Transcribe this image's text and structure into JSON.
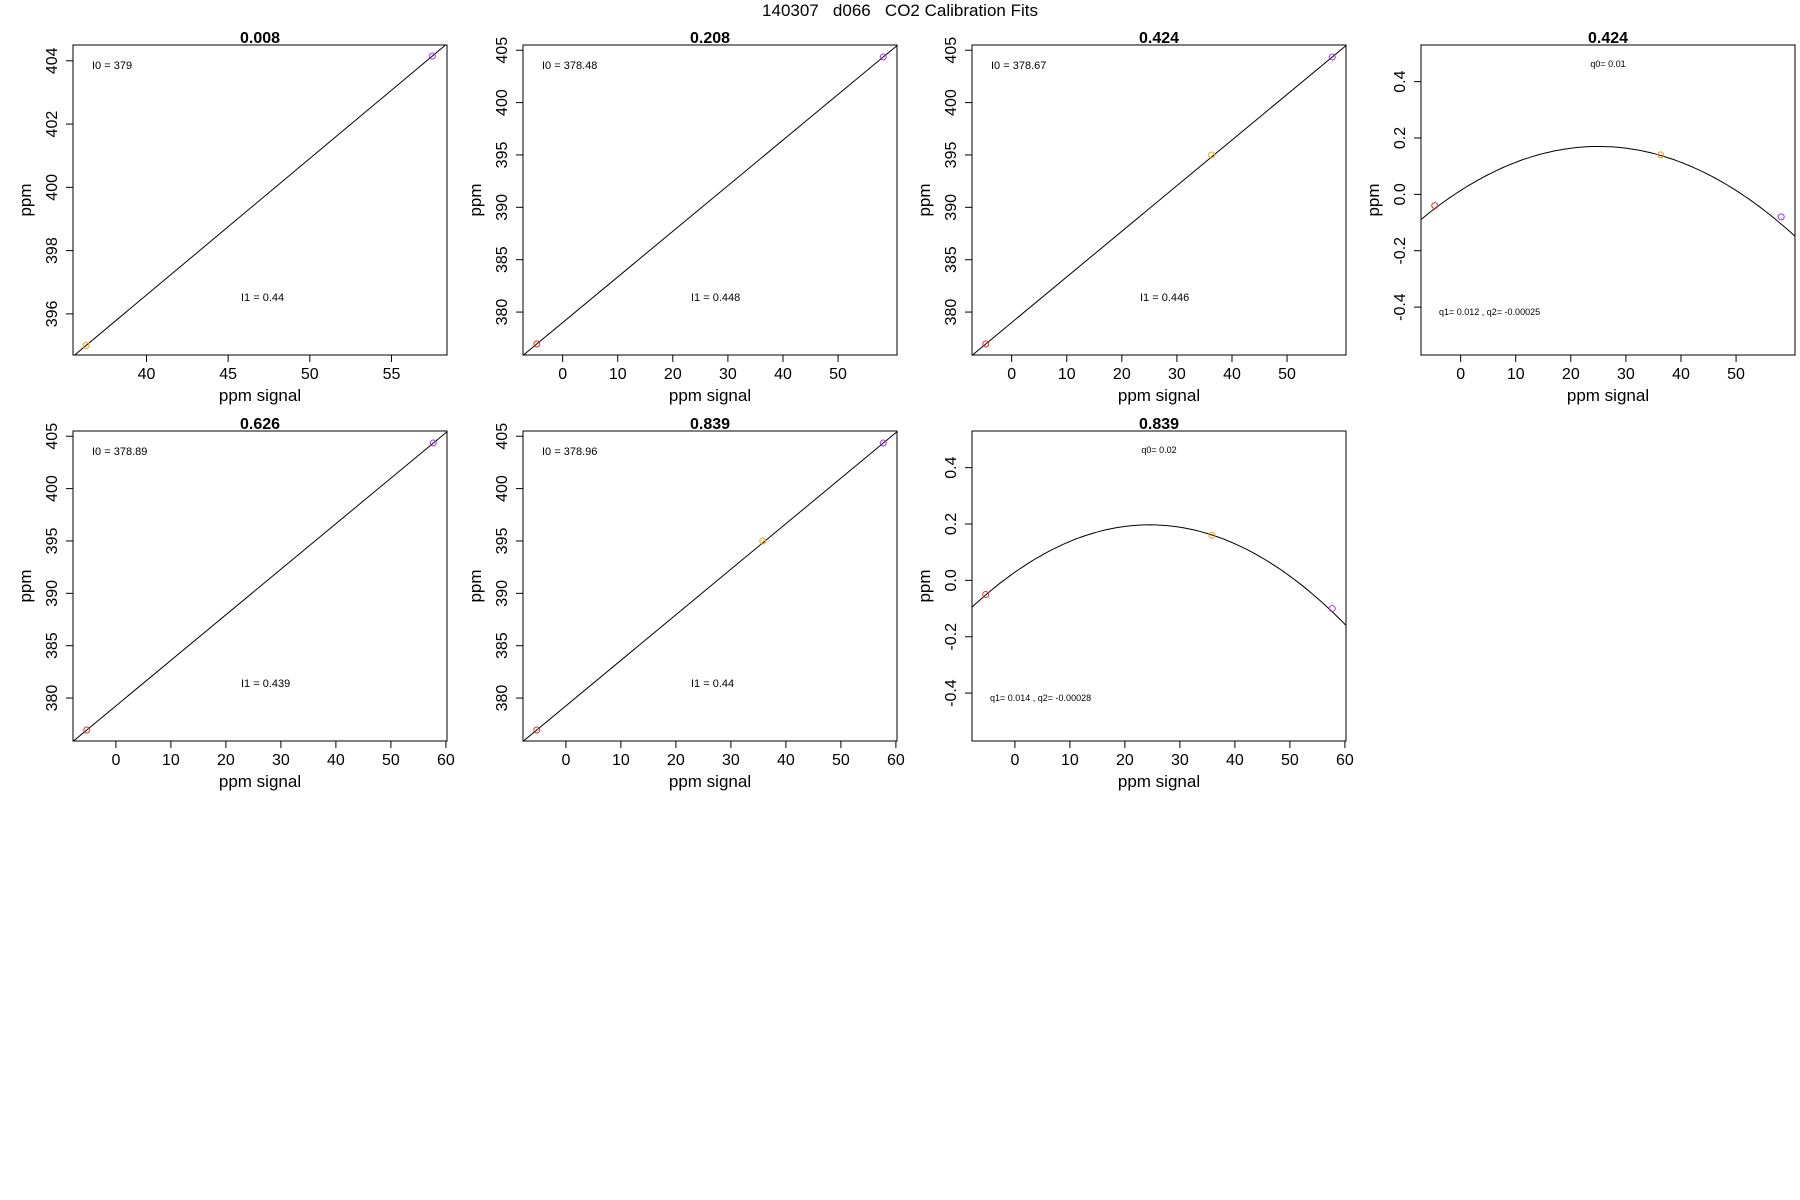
{
  "figure_title": "140307   d066   CO2 Calibration Fits",
  "chart_data": [
    {
      "type": "scatter",
      "title": "0.008",
      "xlabel": "ppm signal",
      "ylabel": "ppm",
      "xlim": [
        35.5,
        58.4
      ],
      "ylim": [
        394.7,
        404.5
      ],
      "xticks": [
        40,
        45,
        50,
        55
      ],
      "yticks": [
        396,
        398,
        400,
        402,
        404
      ],
      "points": [
        {
          "x": 36.3,
          "y": 395.0,
          "color": "#f5a000"
        },
        {
          "x": 57.5,
          "y": 404.15,
          "color": "#9b30ff"
        }
      ],
      "fit": {
        "kind": "linear",
        "x0": 36.3,
        "y0": 395.0,
        "x1": 57.5,
        "y1": 404.15
      },
      "annotations": [
        "I0 =  379",
        "I1 =  0.44"
      ]
    },
    {
      "type": "scatter",
      "title": "0.208",
      "xlabel": "ppm signal",
      "ylabel": "ppm",
      "xlim": [
        -7.2,
        60.7
      ],
      "ylim": [
        375.9,
        405.5
      ],
      "xticks": [
        0,
        10,
        20,
        30,
        40,
        50
      ],
      "yticks": [
        380,
        385,
        390,
        395,
        400,
        405
      ],
      "points": [
        {
          "x": -4.7,
          "y": 376.95,
          "color": "#e03030"
        },
        {
          "x": 58.2,
          "y": 404.35,
          "color": "#9b30ff"
        }
      ],
      "fit": {
        "kind": "linear",
        "x0": -4.7,
        "y0": 376.95,
        "x1": 58.2,
        "y1": 404.35
      },
      "annotations": [
        "I0 =  378.48",
        "I1 =  0.448"
      ]
    },
    {
      "type": "scatter",
      "title": "0.424",
      "xlabel": "ppm signal",
      "ylabel": "ppm",
      "xlim": [
        -7.2,
        60.7
      ],
      "ylim": [
        375.9,
        405.5
      ],
      "xticks": [
        0,
        10,
        20,
        30,
        40,
        50
      ],
      "yticks": [
        380,
        385,
        390,
        395,
        400,
        405
      ],
      "points": [
        {
          "x": -4.7,
          "y": 376.95,
          "color": "#e03030"
        },
        {
          "x": 36.3,
          "y": 395.0,
          "color": "#f5a000"
        },
        {
          "x": 58.2,
          "y": 404.35,
          "color": "#9b30ff"
        }
      ],
      "fit": {
        "kind": "linear",
        "x0": -4.7,
        "y0": 376.95,
        "x1": 58.2,
        "y1": 404.35
      },
      "annotations": [
        "I0 =  378.67",
        "I1 =  0.446"
      ]
    },
    {
      "type": "scatter",
      "title": "0.424",
      "xlabel": "ppm signal",
      "ylabel": "ppm",
      "xlim": [
        -7.2,
        60.7
      ],
      "ylim": [
        -0.57,
        0.53
      ],
      "xticks": [
        0,
        10,
        20,
        30,
        40,
        50
      ],
      "yticks": [
        -0.4,
        -0.2,
        0.0,
        0.2,
        0.4
      ],
      "ytick_labels": [
        "-0.4",
        "-0.2",
        "0.0",
        "0.2",
        "0.4"
      ],
      "points": [
        {
          "x": -4.7,
          "y": -0.04,
          "color": "#e03030"
        },
        {
          "x": 36.3,
          "y": 0.14,
          "color": "#f5a000"
        },
        {
          "x": 58.2,
          "y": -0.08,
          "color": "#9b30ff"
        }
      ],
      "fit": {
        "kind": "quadratic",
        "a": -0.00025,
        "h": 25.0,
        "k": 0.17
      },
      "annotations": [
        "q0= 0.01",
        "q1= 0.012 ,  q2= -0.00025"
      ]
    },
    {
      "type": "scatter",
      "title": "0.626",
      "xlabel": "ppm signal",
      "ylabel": "ppm",
      "xlim": [
        -7.8,
        60.2
      ],
      "ylim": [
        375.9,
        405.5
      ],
      "xticks": [
        0,
        10,
        20,
        30,
        40,
        50,
        60
      ],
      "yticks": [
        380,
        385,
        390,
        395,
        400,
        405
      ],
      "points": [
        {
          "x": -5.3,
          "y": 376.95,
          "color": "#e03030"
        },
        {
          "x": 57.7,
          "y": 404.35,
          "color": "#9b30ff"
        }
      ],
      "fit": {
        "kind": "linear",
        "x0": -5.3,
        "y0": 376.95,
        "x1": 57.7,
        "y1": 404.35
      },
      "annotations": [
        "I0 =  378.89",
        "I1 =  0.439"
      ]
    },
    {
      "type": "scatter",
      "title": "0.839",
      "xlabel": "ppm signal",
      "ylabel": "ppm",
      "xlim": [
        -7.8,
        60.2
      ],
      "ylim": [
        375.9,
        405.5
      ],
      "xticks": [
        0,
        10,
        20,
        30,
        40,
        50,
        60
      ],
      "yticks": [
        380,
        385,
        390,
        395,
        400,
        405
      ],
      "points": [
        {
          "x": -5.3,
          "y": 376.95,
          "color": "#e03030"
        },
        {
          "x": 35.8,
          "y": 395.0,
          "color": "#f5a000"
        },
        {
          "x": 57.7,
          "y": 404.35,
          "color": "#9b30ff"
        }
      ],
      "fit": {
        "kind": "linear",
        "x0": -5.3,
        "y0": 376.95,
        "x1": 57.7,
        "y1": 404.35
      },
      "annotations": [
        "I0 =  378.96",
        "I1 =  0.44"
      ]
    },
    {
      "type": "scatter",
      "title": "0.839",
      "xlabel": "ppm signal",
      "ylabel": "ppm",
      "xlim": [
        -7.8,
        60.2
      ],
      "ylim": [
        -0.57,
        0.53
      ],
      "xticks": [
        0,
        10,
        20,
        30,
        40,
        50,
        60
      ],
      "yticks": [
        -0.4,
        -0.2,
        0.0,
        0.2,
        0.4
      ],
      "ytick_labels": [
        "-0.4",
        "-0.2",
        "0.0",
        "0.2",
        "0.4"
      ],
      "points": [
        {
          "x": -5.3,
          "y": -0.05,
          "color": "#e03030"
        },
        {
          "x": 35.8,
          "y": 0.16,
          "color": "#f5a000"
        },
        {
          "x": 57.7,
          "y": -0.1,
          "color": "#9b30ff"
        }
      ],
      "fit": {
        "kind": "quadratic",
        "a": -0.00028,
        "h": 24.5,
        "k": 0.197
      },
      "annotations": [
        "q0= 0.02",
        "q1= 0.014 ,  q2= -0.00028"
      ]
    }
  ]
}
